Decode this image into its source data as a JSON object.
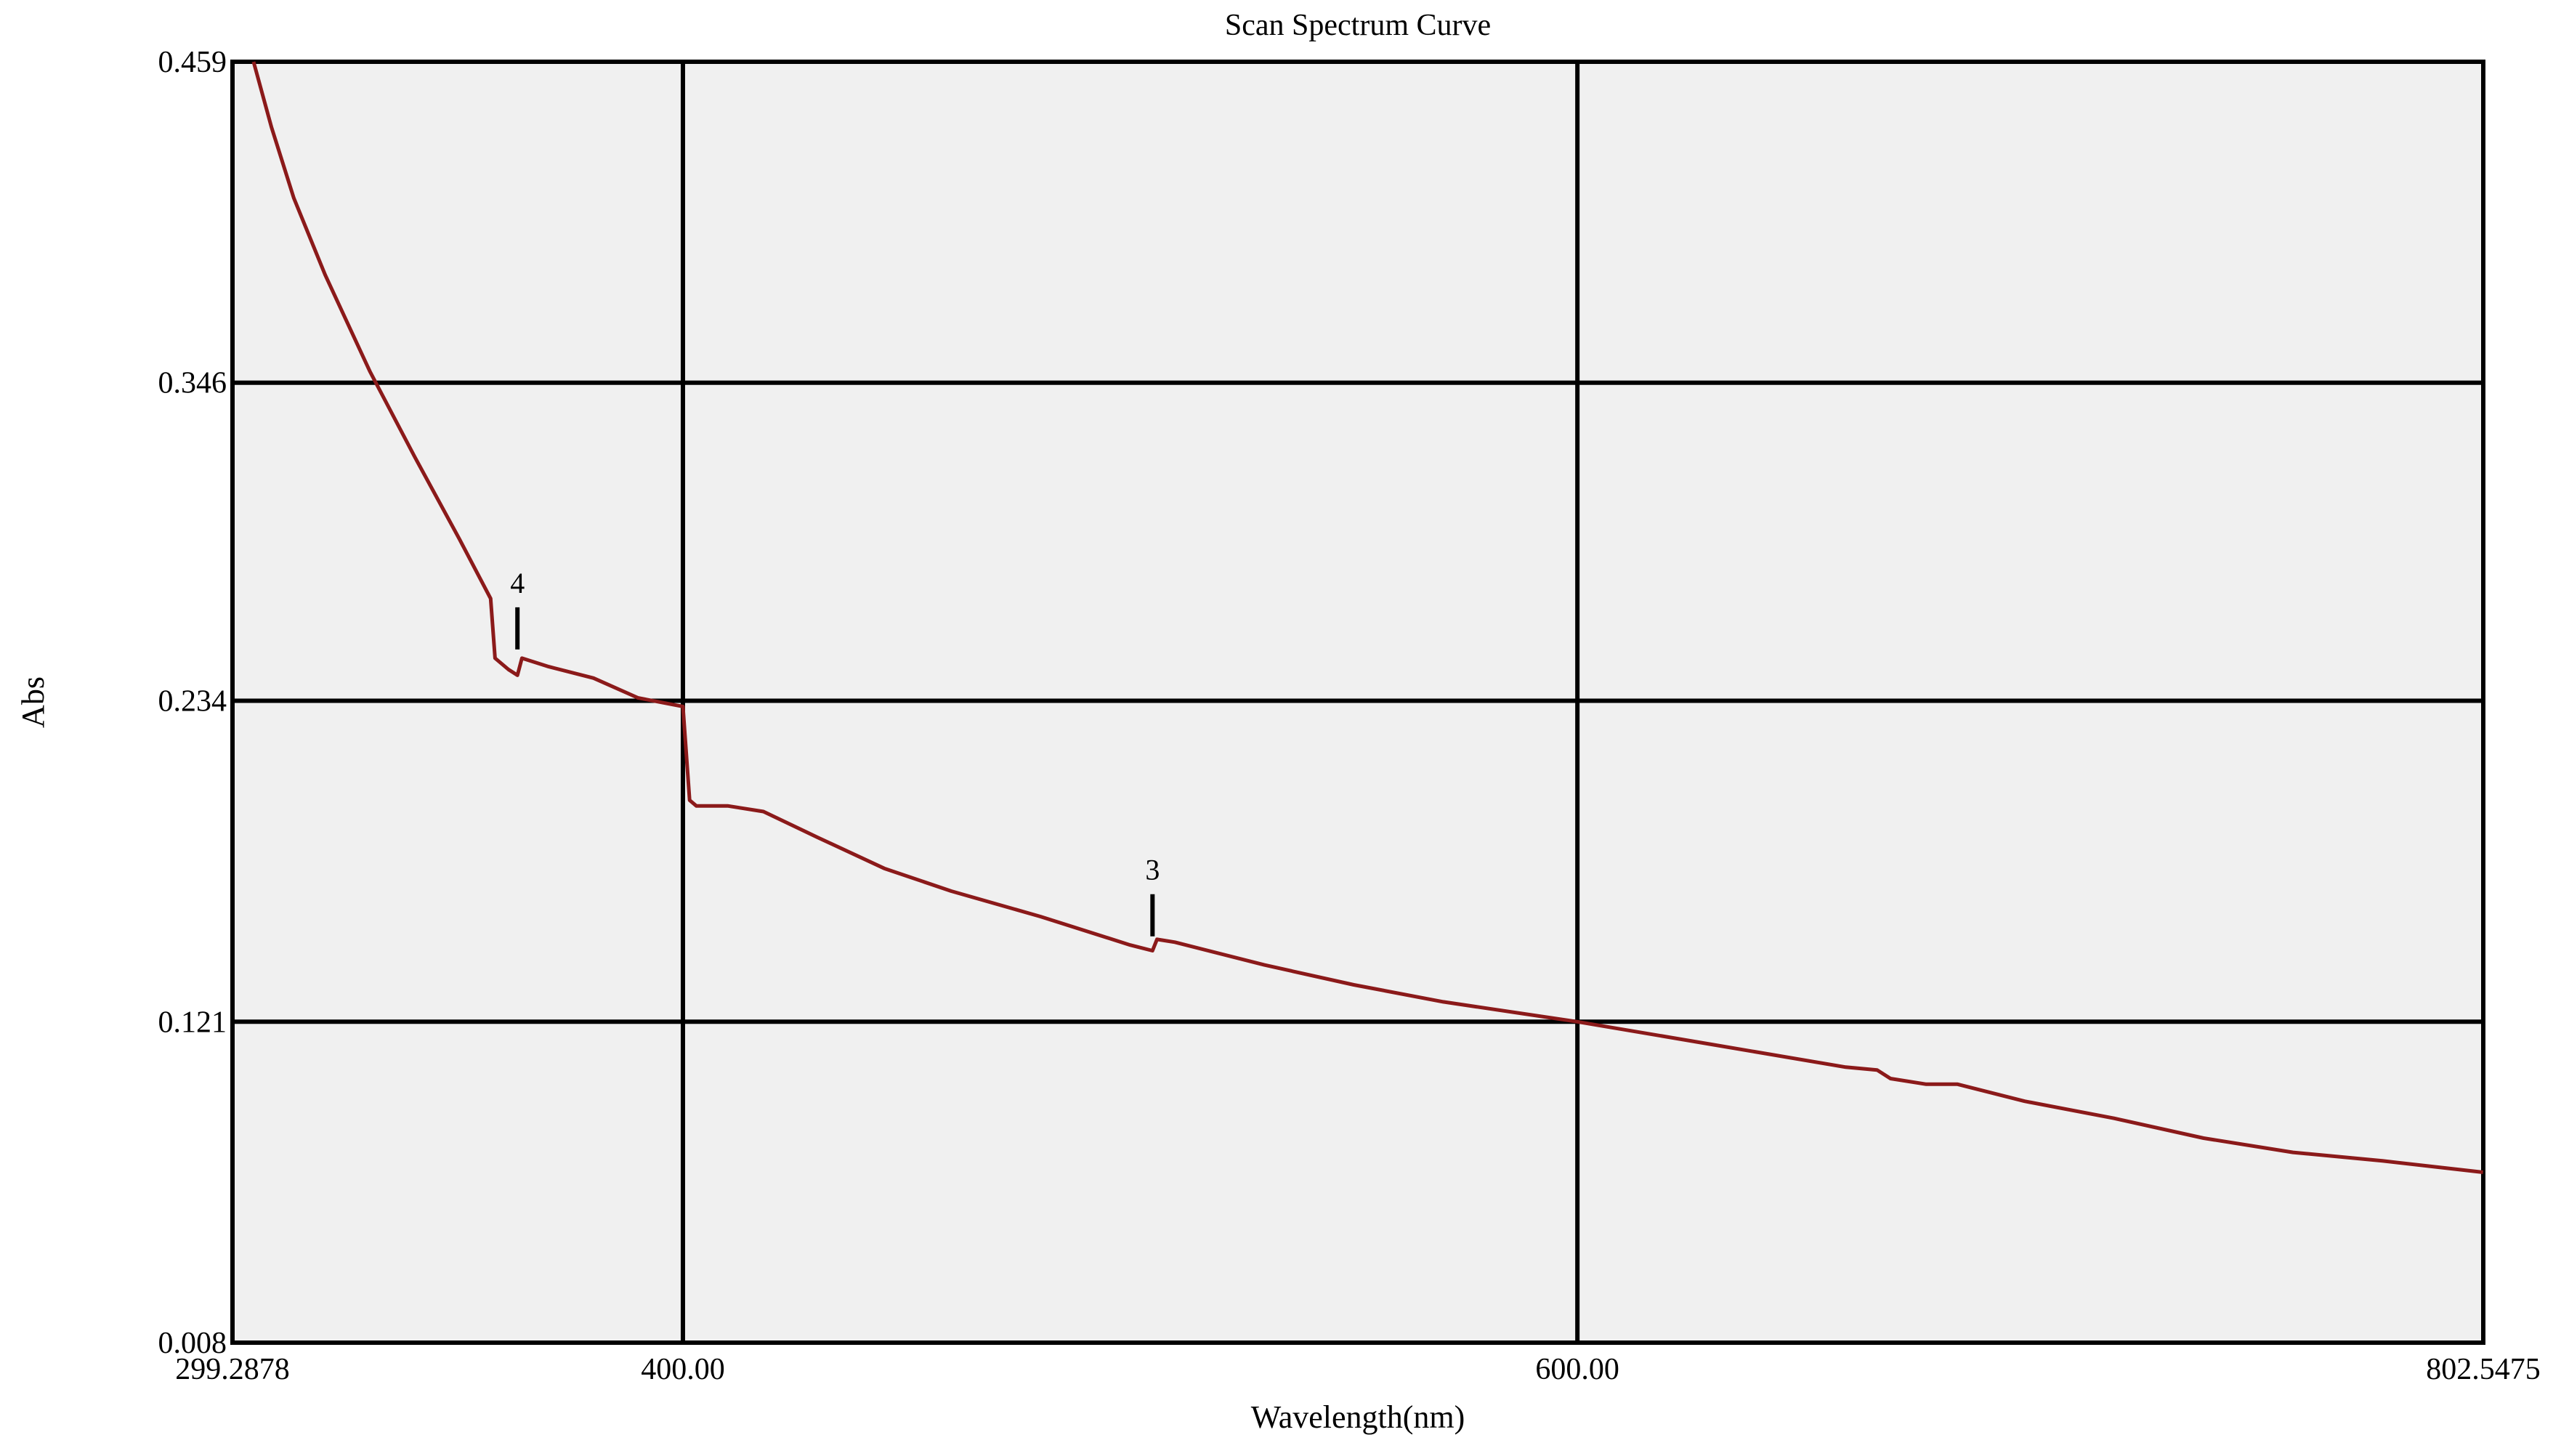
{
  "chart_data": {
    "type": "line",
    "title": "Scan Spectrum Curve",
    "xlabel": "Wavelength(nm)",
    "ylabel": "Abs",
    "xlim": [
      299.2878,
      802.5475
    ],
    "ylim": [
      0.008,
      0.459
    ],
    "x_ticks": [
      {
        "value": 299.2878,
        "label": "299.2878"
      },
      {
        "value": 400.0,
        "label": "400.00"
      },
      {
        "value": 600.0,
        "label": "600.00"
      },
      {
        "value": 802.5475,
        "label": "802.5475"
      }
    ],
    "y_ticks": [
      {
        "value": 0.459,
        "label": "0.459"
      },
      {
        "value": 0.346,
        "label": "0.346"
      },
      {
        "value": 0.234,
        "label": "0.234"
      },
      {
        "value": 0.121,
        "label": "0.121"
      },
      {
        "value": 0.008,
        "label": "0.008"
      }
    ],
    "grid": true,
    "colors": {
      "line": "#8b1a1a",
      "plot_background": "#f0f0f0",
      "grid": "#000000"
    },
    "series": [
      {
        "name": "",
        "x": [
          304.0,
          308.0,
          313.0,
          320.0,
          330.0,
          340.0,
          350.0,
          357.0,
          358.0,
          361.0,
          363.0,
          364.0,
          370.0,
          380.0,
          390.0,
          400.0,
          401.5,
          403.0,
          410.0,
          418.0,
          430.0,
          445.0,
          460.0,
          480.0,
          500.0,
          505.0,
          506.0,
          510.0,
          530.0,
          550.0,
          570.0,
          600.0,
          630.0,
          660.0,
          667.0,
          670.0,
          678.0,
          685.0,
          700.0,
          720.0,
          740.0,
          760.0,
          780.0,
          802.5
        ],
        "y": [
          0.459,
          0.436,
          0.411,
          0.384,
          0.35,
          0.32,
          0.291,
          0.27,
          0.249,
          0.245,
          0.243,
          0.249,
          0.246,
          0.242,
          0.235,
          0.232,
          0.199,
          0.197,
          0.197,
          0.195,
          0.186,
          0.175,
          0.167,
          0.158,
          0.148,
          0.146,
          0.15,
          0.149,
          0.141,
          0.134,
          0.128,
          0.121,
          0.113,
          0.105,
          0.104,
          0.101,
          0.099,
          0.099,
          0.093,
          0.087,
          0.08,
          0.075,
          0.072,
          0.068
        ]
      }
    ],
    "annotations": [
      {
        "label": "4",
        "x": 363.0,
        "y": 0.249
      },
      {
        "label": "3",
        "x": 505.0,
        "y": 0.148
      }
    ]
  }
}
